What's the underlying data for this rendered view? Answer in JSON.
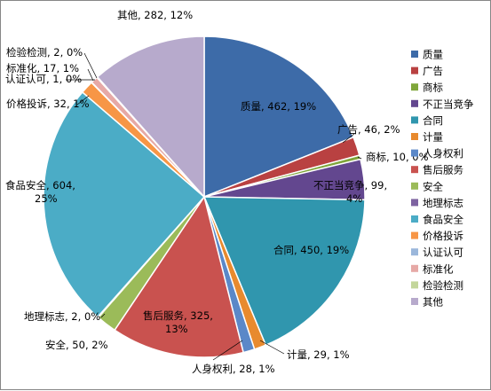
{
  "chart_data": {
    "type": "pie",
    "title": "",
    "legend_position": "right",
    "categories": [
      "质量",
      "广告",
      "商标",
      "不正当竞争",
      "合同",
      "计量",
      "人身权利",
      "售后服务",
      "安全",
      "地理标志",
      "食品安全",
      "价格投诉",
      "认证认可",
      "标准化",
      "检验检测",
      "其他"
    ],
    "values": [
      462,
      46,
      10,
      99,
      450,
      29,
      28,
      325,
      50,
      2,
      604,
      32,
      1,
      17,
      2,
      282
    ],
    "colors": [
      "#3D6BA8",
      "#B94141",
      "#7FA63A",
      "#63478F",
      "#3096AE",
      "#E88A2E",
      "#5B88C8",
      "#C9524F",
      "#9BBB59",
      "#7E63A1",
      "#4BACC6",
      "#F79646",
      "#9BB7DB",
      "#E6A9A6",
      "#C3D69B",
      "#B7AACC"
    ],
    "data_labels": [
      [
        "质量, 462, 19%"
      ],
      [
        "广告, 46, 2%"
      ],
      [
        "商标, 10, 0%"
      ],
      [
        "不正当竞争, 99,",
        "4%"
      ],
      [
        "合同, 450, 19%"
      ],
      [
        "计量, 29, 1%"
      ],
      [
        "人身权利, 28, 1%"
      ],
      [
        "售后服务, 325,",
        "13%"
      ],
      [
        "安全, 50, 2%"
      ],
      [
        "地理标志, 2, 0%"
      ],
      [
        "食品安全, 604,",
        "25%"
      ],
      [
        "价格投诉, 32, 1%"
      ],
      [
        "认证认可, 1, 0%"
      ],
      [
        "标准化, 17, 1%"
      ],
      [
        "检验检测, 2, 0%"
      ],
      [
        "其他, 282, 12%"
      ]
    ]
  }
}
